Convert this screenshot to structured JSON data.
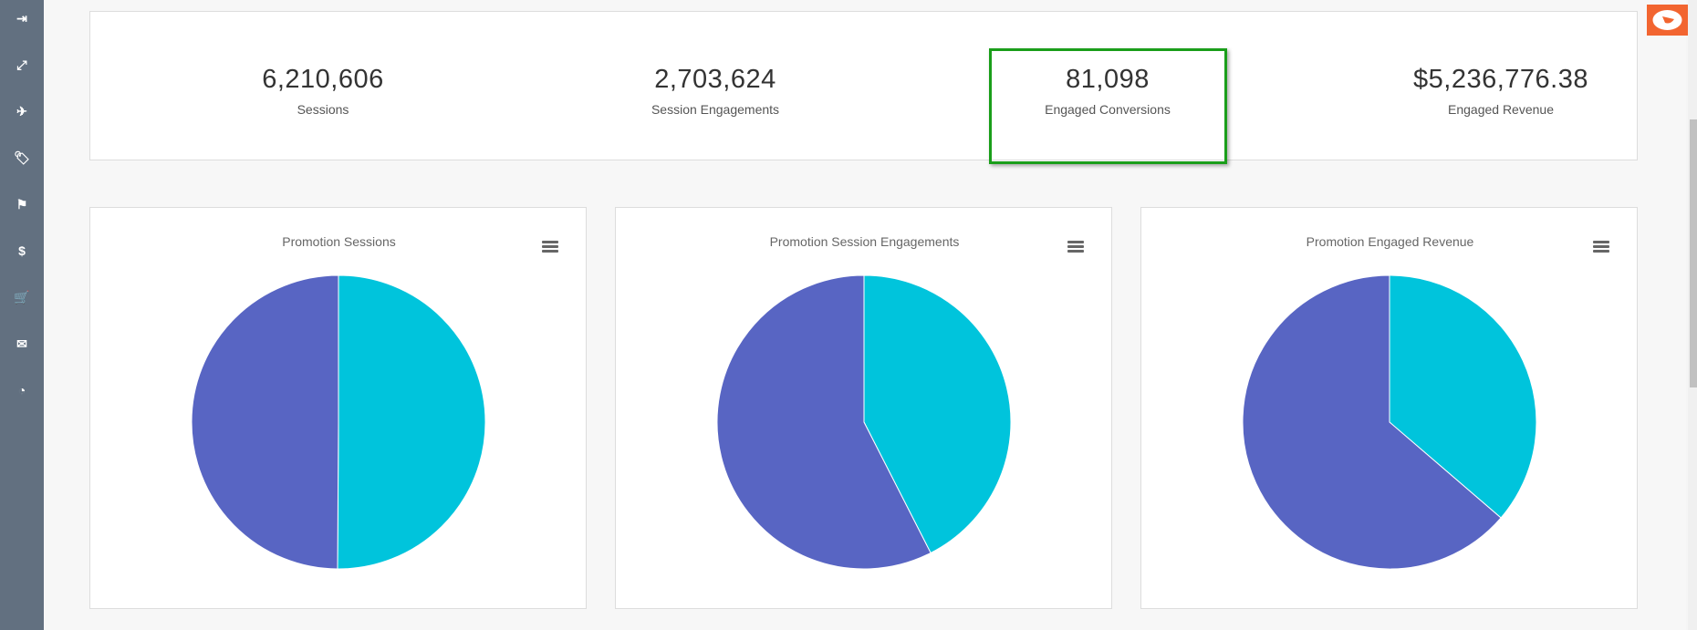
{
  "sidebar": {
    "items": [
      {
        "icon": "sign-out-icon",
        "glyph": "⇥"
      },
      {
        "icon": "resize-icon",
        "glyph": "⤢"
      },
      {
        "icon": "plane-icon",
        "glyph": "✈"
      },
      {
        "icon": "tags-icon",
        "glyph": "🏷"
      },
      {
        "icon": "flag-icon",
        "glyph": "⚑"
      },
      {
        "icon": "dollar-icon",
        "glyph": "$"
      },
      {
        "icon": "cart-icon",
        "glyph": "🛒"
      },
      {
        "icon": "envelope-icon",
        "glyph": "✉"
      },
      {
        "icon": "dashboard-icon",
        "glyph": "◔"
      }
    ]
  },
  "kpis": [
    {
      "value": "6,210,606",
      "label": "Sessions"
    },
    {
      "value": "2,703,624",
      "label": "Session Engagements"
    },
    {
      "value": "81,098",
      "label": "Engaged Conversions",
      "highlighted": true
    },
    {
      "value": "$5,236,776.38",
      "label": "Engaged Revenue"
    }
  ],
  "colors": {
    "slice_a": "#00c4dc",
    "slice_b": "#5865c3",
    "highlight": "#1a9e1a",
    "logo": "#f26530"
  },
  "chart_data": [
    {
      "type": "pie",
      "title": "Promotion Sessions",
      "values": [
        50.1,
        49.9
      ],
      "colors": [
        "#00c4dc",
        "#5865c3"
      ]
    },
    {
      "type": "pie",
      "title": "Promotion Session Engagements",
      "values": [
        42.5,
        57.5
      ],
      "colors": [
        "#00c4dc",
        "#5865c3"
      ]
    },
    {
      "type": "pie",
      "title": "Promotion Engaged Revenue",
      "values": [
        36.3,
        63.7
      ],
      "colors": [
        "#00c4dc",
        "#5865c3"
      ]
    }
  ]
}
